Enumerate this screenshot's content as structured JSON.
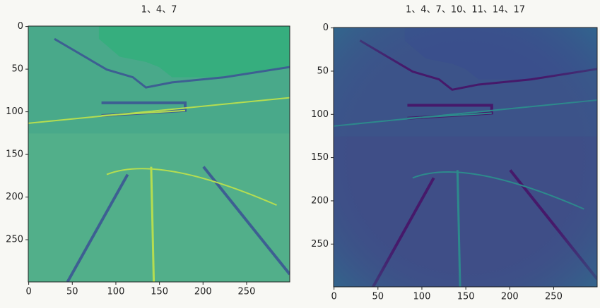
{
  "chart_data": [
    {
      "type": "image",
      "title": "1、4、7",
      "xlim": [
        -0.5,
        299.5
      ],
      "ylim": [
        299.5,
        -0.5
      ],
      "xticks": [
        0,
        50,
        100,
        150,
        200,
        250
      ],
      "yticks": [
        0,
        50,
        100,
        150,
        200,
        250
      ]
    },
    {
      "type": "image",
      "title": "1、4、7、10、11、14、17",
      "xlim": [
        -0.5,
        299.5
      ],
      "ylim": [
        299.5,
        -0.5
      ],
      "xticks": [
        0,
        50,
        100,
        150,
        200,
        250
      ],
      "yticks": [
        0,
        50,
        100,
        150,
        200,
        250
      ]
    }
  ]
}
